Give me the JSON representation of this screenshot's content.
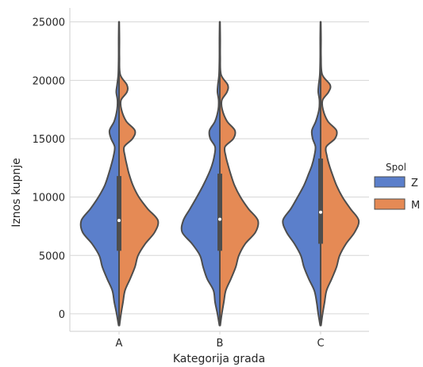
{
  "chart_data": {
    "type": "violin",
    "split": true,
    "categories": [
      "A",
      "B",
      "C"
    ],
    "xlabel": "Kategorija grada",
    "ylabel": "Iznos kupnje",
    "ylim": [
      -1500,
      26200
    ],
    "yticks": [
      0,
      5000,
      10000,
      15000,
      20000,
      25000
    ],
    "grid": true,
    "legend": {
      "title": "Spol",
      "placement": "right",
      "entries": [
        {
          "label": "Z",
          "color": "#5b7fcb"
        },
        {
          "label": "M",
          "color": "#e58a55"
        }
      ]
    },
    "colors": {
      "Z": "#5b7fcb",
      "M": "#e58a55",
      "outline": "#4d4d4d",
      "grid": "#d6d6d6"
    },
    "series": [
      {
        "name": "Z",
        "side": "left",
        "profiles": [
          [
            [
              -1000,
              0.01
            ],
            [
              0,
              0.06
            ],
            [
              1000,
              0.12
            ],
            [
              2000,
              0.17
            ],
            [
              3000,
              0.3
            ],
            [
              4000,
              0.42
            ],
            [
              5000,
              0.5
            ],
            [
              6000,
              0.68
            ],
            [
              7000,
              0.92
            ],
            [
              8000,
              0.95
            ],
            [
              9000,
              0.72
            ],
            [
              10000,
              0.52
            ],
            [
              11000,
              0.36
            ],
            [
              12000,
              0.26
            ],
            [
              12700,
              0.2
            ],
            [
              13500,
              0.14
            ],
            [
              14300,
              0.11
            ],
            [
              15000,
              0.2
            ],
            [
              15700,
              0.24
            ],
            [
              16500,
              0.12
            ],
            [
              17500,
              0.05
            ],
            [
              18300,
              0.04
            ],
            [
              19000,
              0.07
            ],
            [
              19600,
              0.05
            ],
            [
              20500,
              0.02
            ],
            [
              22000,
              0.01
            ],
            [
              23500,
              0.01
            ],
            [
              25000,
              0.005
            ]
          ],
          [
            [
              -1000,
              0.01
            ],
            [
              0,
              0.06
            ],
            [
              1000,
              0.12
            ],
            [
              2000,
              0.16
            ],
            [
              3000,
              0.32
            ],
            [
              4000,
              0.42
            ],
            [
              5000,
              0.5
            ],
            [
              6000,
              0.7
            ],
            [
              7000,
              0.95
            ],
            [
              8000,
              0.92
            ],
            [
              9000,
              0.75
            ],
            [
              10000,
              0.58
            ],
            [
              11000,
              0.42
            ],
            [
              12000,
              0.28
            ],
            [
              12700,
              0.2
            ],
            [
              13500,
              0.14
            ],
            [
              14300,
              0.12
            ],
            [
              15000,
              0.24
            ],
            [
              15700,
              0.26
            ],
            [
              16500,
              0.12
            ],
            [
              17500,
              0.04
            ],
            [
              18300,
              0.03
            ],
            [
              19000,
              0.06
            ],
            [
              19600,
              0.05
            ],
            [
              20500,
              0.02
            ],
            [
              22000,
              0.01
            ],
            [
              23500,
              0.01
            ],
            [
              25000,
              0.005
            ]
          ],
          [
            [
              -1000,
              0.01
            ],
            [
              0,
              0.06
            ],
            [
              1000,
              0.1
            ],
            [
              2000,
              0.16
            ],
            [
              3000,
              0.3
            ],
            [
              4000,
              0.42
            ],
            [
              5000,
              0.5
            ],
            [
              6000,
              0.66
            ],
            [
              7000,
              0.86
            ],
            [
              8000,
              0.95
            ],
            [
              9000,
              0.75
            ],
            [
              10000,
              0.58
            ],
            [
              11000,
              0.42
            ],
            [
              12000,
              0.3
            ],
            [
              12700,
              0.22
            ],
            [
              13500,
              0.16
            ],
            [
              14300,
              0.13
            ],
            [
              15000,
              0.2
            ],
            [
              15700,
              0.22
            ],
            [
              16500,
              0.12
            ],
            [
              17500,
              0.04
            ],
            [
              18300,
              0.03
            ],
            [
              19000,
              0.06
            ],
            [
              19600,
              0.05
            ],
            [
              20500,
              0.02
            ],
            [
              22000,
              0.01
            ],
            [
              23500,
              0.01
            ],
            [
              25000,
              0.005
            ]
          ]
        ]
      },
      {
        "name": "M",
        "side": "right",
        "profiles": [
          [
            [
              -1000,
              0.01
            ],
            [
              0,
              0.05
            ],
            [
              1000,
              0.1
            ],
            [
              2000,
              0.15
            ],
            [
              3000,
              0.28
            ],
            [
              4000,
              0.4
            ],
            [
              5000,
              0.48
            ],
            [
              6000,
              0.66
            ],
            [
              7000,
              0.9
            ],
            [
              8000,
              0.98
            ],
            [
              9000,
              0.72
            ],
            [
              10000,
              0.5
            ],
            [
              11000,
              0.35
            ],
            [
              12000,
              0.25
            ],
            [
              12700,
              0.2
            ],
            [
              13500,
              0.15
            ],
            [
              14300,
              0.13
            ],
            [
              15000,
              0.34
            ],
            [
              15700,
              0.4
            ],
            [
              16500,
              0.18
            ],
            [
              17500,
              0.06
            ],
            [
              18300,
              0.05
            ],
            [
              19000,
              0.2
            ],
            [
              19600,
              0.2
            ],
            [
              20500,
              0.03
            ],
            [
              22000,
              0.01
            ],
            [
              23500,
              0.01
            ],
            [
              25000,
              0.005
            ]
          ],
          [
            [
              -1000,
              0.01
            ],
            [
              0,
              0.05
            ],
            [
              1000,
              0.1
            ],
            [
              2000,
              0.15
            ],
            [
              3000,
              0.28
            ],
            [
              4000,
              0.4
            ],
            [
              5000,
              0.48
            ],
            [
              6000,
              0.64
            ],
            [
              7000,
              0.9
            ],
            [
              8000,
              0.96
            ],
            [
              9000,
              0.72
            ],
            [
              10000,
              0.52
            ],
            [
              11000,
              0.37
            ],
            [
              12000,
              0.27
            ],
            [
              12700,
              0.21
            ],
            [
              13500,
              0.15
            ],
            [
              14300,
              0.13
            ],
            [
              15000,
              0.34
            ],
            [
              15700,
              0.38
            ],
            [
              16500,
              0.18
            ],
            [
              17500,
              0.06
            ],
            [
              18300,
              0.05
            ],
            [
              19000,
              0.18
            ],
            [
              19600,
              0.2
            ],
            [
              20500,
              0.03
            ],
            [
              22000,
              0.01
            ],
            [
              23500,
              0.01
            ],
            [
              25000,
              0.005
            ]
          ],
          [
            [
              -1000,
              0.01
            ],
            [
              0,
              0.05
            ],
            [
              1000,
              0.1
            ],
            [
              2000,
              0.15
            ],
            [
              3000,
              0.28
            ],
            [
              4000,
              0.4
            ],
            [
              5000,
              0.48
            ],
            [
              6000,
              0.64
            ],
            [
              7000,
              0.86
            ],
            [
              8000,
              0.96
            ],
            [
              9000,
              0.75
            ],
            [
              10000,
              0.55
            ],
            [
              11000,
              0.4
            ],
            [
              12000,
              0.29
            ],
            [
              12700,
              0.22
            ],
            [
              13500,
              0.16
            ],
            [
              14300,
              0.14
            ],
            [
              15000,
              0.36
            ],
            [
              15700,
              0.4
            ],
            [
              16500,
              0.18
            ],
            [
              17500,
              0.06
            ],
            [
              18300,
              0.05
            ],
            [
              19000,
              0.2
            ],
            [
              19600,
              0.24
            ],
            [
              20500,
              0.04
            ],
            [
              22000,
              0.01
            ],
            [
              23500,
              0.01
            ],
            [
              25000,
              0.005
            ]
          ]
        ]
      }
    ],
    "box": [
      {
        "category": "A",
        "q1": 5400,
        "median": 8000,
        "q3": 11800
      },
      {
        "category": "B",
        "q1": 5400,
        "median": 8100,
        "q3": 12000
      },
      {
        "category": "C",
        "q1": 6000,
        "median": 8700,
        "q3": 13300
      }
    ]
  }
}
